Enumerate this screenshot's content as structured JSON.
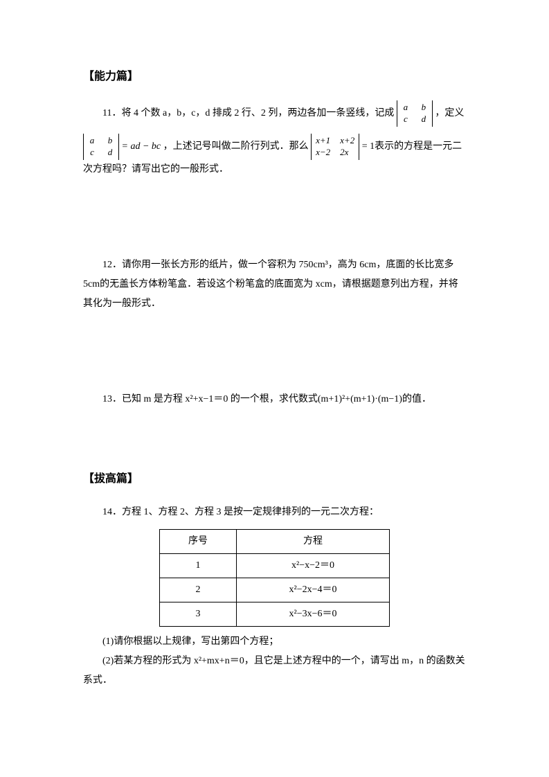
{
  "sections": {
    "ability": {
      "title": "【能力篇】"
    },
    "advanced": {
      "title": "【拔高篇】"
    }
  },
  "q11": {
    "part1": "11．将 4 个数 a，b，c，d 排成 2 行、2 列，两边各加一条竖线，记成",
    "det1": {
      "r1c1": "a",
      "r1c2": "b",
      "r2c1": "c",
      "r2c2": "d"
    },
    "part2": "，定义",
    "det2": {
      "r1c1": "a",
      "r1c2": "b",
      "r2c1": "c",
      "r2c2": "d"
    },
    "eqdef": "= ad − bc",
    "part3": "，上述记号叫做二阶行列式．那么",
    "det3": {
      "r1c1": "x+1",
      "r1c2": "x+2",
      "r2c1": "x−2",
      "r2c2": "2x"
    },
    "part4": "= 1表示的方程是一元二次方程吗？请写出它的一般形式．"
  },
  "q12": {
    "text": "12．请你用一张长方形的纸片，做一个容积为 750cm³，高为 6cm，底面的长比宽多 5cm的无盖长方体粉笔盒．若设这个粉笔盒的底面宽为 xcm，请根据题意列出方程，并将其化为一般形式．"
  },
  "q13": {
    "text": "13．已知 m 是方程 x²+x−1＝0 的一个根，求代数式(m+1)²+(m+1)·(m−1)的值．"
  },
  "q14": {
    "intro": "14．方程 1、方程 2、方程 3 是按一定规律排列的一元二次方程：",
    "table": {
      "headers": [
        "序号",
        "方程"
      ],
      "rows": [
        [
          "1",
          "x²−x−2＝0"
        ],
        [
          "2",
          "x²−2x−4＝0"
        ],
        [
          "3",
          "x²−3x−6＝0"
        ]
      ]
    },
    "sub1": "(1)请你根据以上规律，写出第四个方程；",
    "sub2": "(2)若某方程的形式为 x²+mx+n＝0，且它是上述方程中的一个，请写出 m，n 的函数关系式．"
  }
}
